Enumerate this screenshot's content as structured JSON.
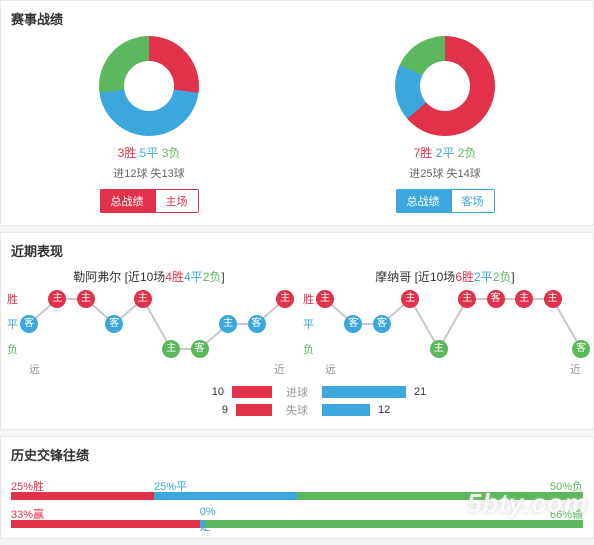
{
  "colors": {
    "win": "#e2314a",
    "draw": "#3ca7dd",
    "loss": "#5cb85c",
    "grey": "#999999",
    "background": "#ffffff"
  },
  "section1": {
    "title": "赛事战绩",
    "left": {
      "donut": {
        "type": "donut",
        "win_deg": 98,
        "draw_deg": 164,
        "loss_deg": 98
      },
      "wins_label": "3胜",
      "draws_label": "5平",
      "losses_label": "3负",
      "goals_text": "进12球 失13球",
      "toggle": {
        "style": "red",
        "active": "总战绩",
        "inactive": "主场"
      }
    },
    "right": {
      "donut": {
        "type": "donut",
        "win_deg": 229,
        "draw_deg": 66,
        "loss_deg": 65
      },
      "wins_label": "7胜",
      "draws_label": "2平",
      "losses_label": "2负",
      "goals_text": "进25球 失14球",
      "toggle": {
        "style": "blue",
        "active": "总战绩",
        "inactive": "客场"
      }
    }
  },
  "section2": {
    "title": "近期表现",
    "axis": {
      "win": "胜",
      "draw": "平",
      "loss": "负",
      "far": "远",
      "near": "近"
    },
    "left": {
      "team": "勒阿弗尔",
      "context_prefix": "[近10场",
      "context_w": "4胜",
      "context_d": "4平",
      "context_l": "2负",
      "context_suffix": "]",
      "points": [
        {
          "ha": "客",
          "res": "d"
        },
        {
          "ha": "主",
          "res": "w"
        },
        {
          "ha": "主",
          "res": "w"
        },
        {
          "ha": "客",
          "res": "d"
        },
        {
          "ha": "主",
          "res": "w"
        },
        {
          "ha": "主",
          "res": "l"
        },
        {
          "ha": "客",
          "res": "l"
        },
        {
          "ha": "主",
          "res": "d"
        },
        {
          "ha": "客",
          "res": "d"
        },
        {
          "ha": "主",
          "res": "w"
        }
      ]
    },
    "right": {
      "team": "摩纳哥",
      "context_prefix": "[近10场",
      "context_w": "6胜",
      "context_d": "2平",
      "context_l": "2负",
      "context_suffix": "]",
      "points": [
        {
          "ha": "主",
          "res": "w"
        },
        {
          "ha": "客",
          "res": "d"
        },
        {
          "ha": "客",
          "res": "d"
        },
        {
          "ha": "主",
          "res": "w"
        },
        {
          "ha": "主",
          "res": "l"
        },
        {
          "ha": "主",
          "res": "w"
        },
        {
          "ha": "客",
          "res": "w"
        },
        {
          "ha": "主",
          "res": "w"
        },
        {
          "ha": "主",
          "res": "w"
        },
        {
          "ha": "客",
          "res": "l"
        }
      ]
    },
    "center_bars": {
      "type": "diverging-bar",
      "max": 25,
      "rows": [
        {
          "label": "进球",
          "left_val": 10,
          "right_val": 21
        },
        {
          "label": "失球",
          "left_val": 9,
          "right_val": 12
        }
      ]
    }
  },
  "section3": {
    "title": "历史交锋往绩",
    "rows": [
      {
        "l_pct": 25,
        "l_label": "25%胜",
        "m_pct": 25,
        "m_label": "25%平",
        "r_pct": 50,
        "r_label": "50%负"
      },
      {
        "l_pct": 33,
        "l_label": "33%赢",
        "m_pct": 1,
        "m_label": "0%走",
        "r_pct": 66,
        "r_label": "66%输"
      }
    ]
  },
  "watermark": "5bty.com"
}
